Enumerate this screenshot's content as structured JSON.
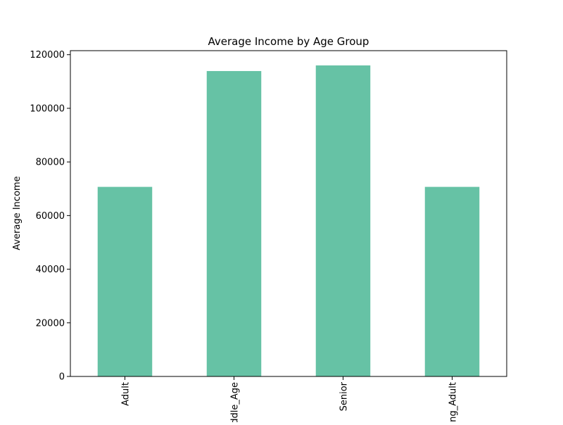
{
  "chart_data": {
    "type": "bar",
    "title": "Average Income by Age Group",
    "xlabel": "",
    "ylabel": "Average Income",
    "categories": [
      "Adult",
      "Middle_Age",
      "Senior",
      "Young_Adult"
    ],
    "values": [
      70700,
      113900,
      116000,
      70700
    ],
    "ylim": [
      0,
      121500
    ],
    "yticks": [
      0,
      20000,
      40000,
      60000,
      80000,
      100000,
      120000
    ],
    "ytick_labels": [
      "0",
      "20000",
      "40000",
      "60000",
      "80000",
      "100000",
      "120000"
    ],
    "grid": false,
    "legend": "none",
    "bar_color": "#66c2a5"
  }
}
